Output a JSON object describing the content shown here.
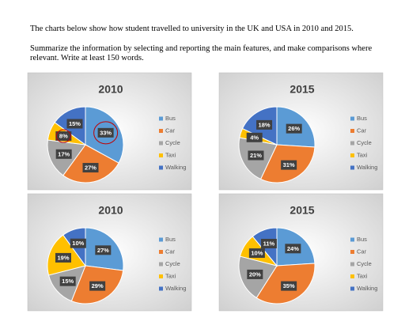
{
  "text": {
    "p1": "The charts below show how student travelled to university in the UK and USA in 2010 and 2015.",
    "p2": "Summarize the information by selecting and reporting the main features, and make comparisons where relevant.  Write at least 150 words."
  },
  "chart_data": [
    {
      "type": "pie",
      "title": "2010",
      "categories": [
        "Bus",
        "Car",
        "Cycle",
        "Taxi",
        "Walking"
      ],
      "values": [
        33,
        27,
        17,
        8,
        15
      ],
      "value_labels": [
        "33%",
        "27%",
        "17%",
        "8%",
        "15%"
      ],
      "colors": [
        "#5b9bd5",
        "#ed7d31",
        "#a5a5a5",
        "#ffc000",
        "#4472c4"
      ]
    },
    {
      "type": "pie",
      "title": "2015",
      "categories": [
        "Bus",
        "Car",
        "Cycle",
        "Taxi",
        "Walking"
      ],
      "values": [
        26,
        31,
        21,
        4,
        18
      ],
      "value_labels": [
        "26%",
        "31%",
        "21%",
        "4%",
        "18%"
      ],
      "colors": [
        "#5b9bd5",
        "#ed7d31",
        "#a5a5a5",
        "#ffc000",
        "#4472c4"
      ]
    },
    {
      "type": "pie",
      "title": "2010",
      "categories": [
        "Bus",
        "Car",
        "Cycle",
        "Taxi",
        "Walking"
      ],
      "values": [
        27,
        29,
        15,
        19,
        10
      ],
      "value_labels": [
        "27%",
        "29%",
        "15%",
        "19%",
        "10%"
      ],
      "colors": [
        "#5b9bd5",
        "#ed7d31",
        "#a5a5a5",
        "#ffc000",
        "#4472c4"
      ]
    },
    {
      "type": "pie",
      "title": "2015",
      "categories": [
        "Bus",
        "Car",
        "Cycle",
        "Taxi",
        "Walking"
      ],
      "values": [
        24,
        35,
        20,
        10,
        11
      ],
      "value_labels": [
        "24%",
        "35%",
        "20%",
        "10%",
        "11%"
      ],
      "colors": [
        "#5b9bd5",
        "#ed7d31",
        "#a5a5a5",
        "#ffc000",
        "#4472c4"
      ]
    }
  ]
}
